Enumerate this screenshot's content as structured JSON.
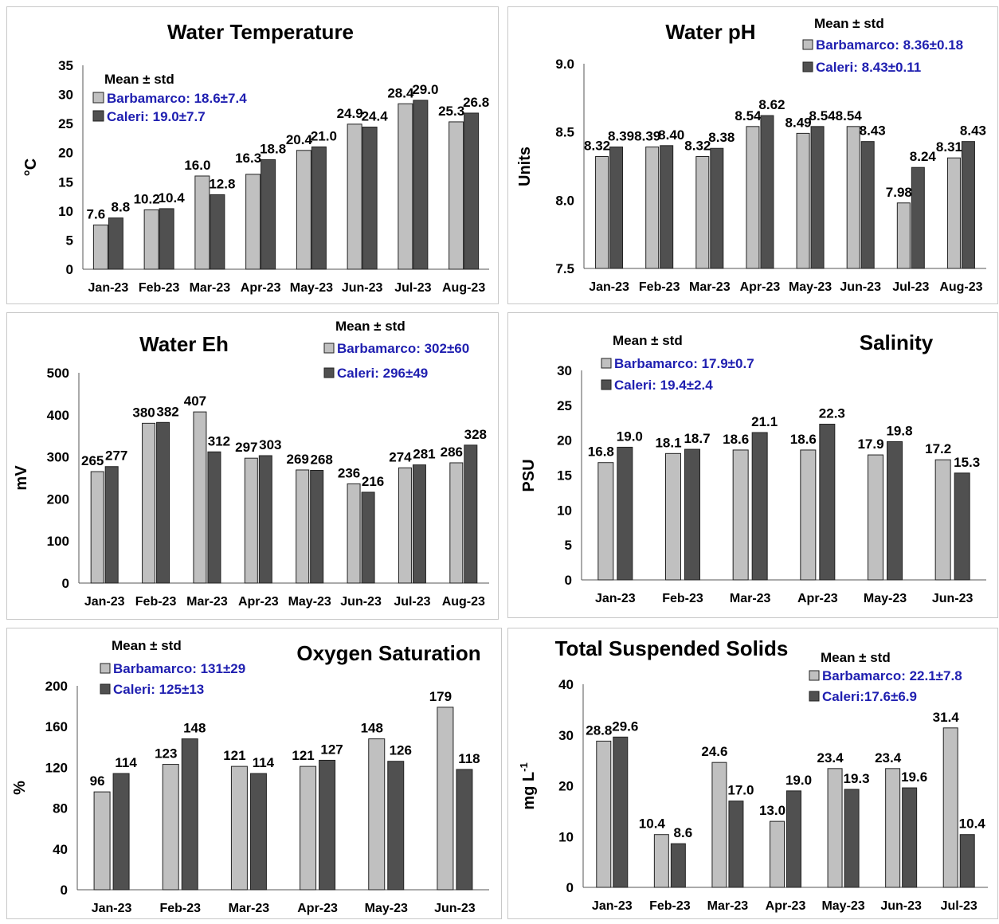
{
  "colors": {
    "s1": "#c0c0c0",
    "s2": "#505050",
    "legend_text": "#1f1fb0",
    "text": "#000000"
  },
  "legend_heading": "Mean ± std",
  "chart_data": [
    {
      "type": "bar",
      "title": "Water Temperature",
      "ylabel": "°C",
      "ylim": [
        0,
        35
      ],
      "yticks": [
        "0",
        "5",
        "10",
        "15",
        "20",
        "25",
        "30",
        "35"
      ],
      "categories": [
        "Jan-23",
        "Feb-23",
        "Mar-23",
        "Apr-23",
        "May-23",
        "Jun-23",
        "Jul-23",
        "Aug-23"
      ],
      "series": [
        {
          "name": "Barbamarco: 18.6±7.4",
          "values": [
            7.6,
            10.2,
            16.0,
            16.3,
            20.4,
            24.9,
            28.4,
            25.3
          ],
          "labels": [
            "7.6",
            "10.2",
            "16.0",
            "16.3",
            "20.4",
            "24.9",
            "28.4",
            "25.3"
          ]
        },
        {
          "name": "Caleri: 19.0±7.7",
          "values": [
            8.8,
            10.4,
            12.8,
            18.8,
            21.0,
            24.4,
            29.0,
            26.8
          ],
          "labels": [
            "8.8",
            "10.4",
            "12.8",
            "18.8",
            "21.0",
            "24.4",
            "29.0",
            "26.8"
          ]
        }
      ]
    },
    {
      "type": "bar",
      "title": "Water pH",
      "ylabel": "Units",
      "ylim": [
        7.5,
        9.0
      ],
      "yticks": [
        "7.5",
        "8.0",
        "8.5",
        "9.0"
      ],
      "categories": [
        "Jan-23",
        "Feb-23",
        "Mar-23",
        "Apr-23",
        "May-23",
        "Jun-23",
        "Jul-23",
        "Aug-23"
      ],
      "series": [
        {
          "name": "Barbamarco: 8.36±0.18",
          "values": [
            8.32,
            8.39,
            8.32,
            8.54,
            8.49,
            8.54,
            7.98,
            8.31
          ],
          "labels": [
            "8.32",
            "8.39",
            "8.32",
            "8.54",
            "8.49",
            "8.54",
            "7.98",
            "8.31"
          ]
        },
        {
          "name": "Caleri: 8.43±0.11",
          "values": [
            8.39,
            8.4,
            8.38,
            8.62,
            8.54,
            8.43,
            8.24,
            8.43
          ],
          "labels": [
            "8.39",
            "8.40",
            "8.38",
            "8.62",
            "8.54",
            "8.43",
            "8.24",
            "8.43"
          ]
        }
      ]
    },
    {
      "type": "bar",
      "title": "Water Eh",
      "ylabel": "mV",
      "ylim": [
        0,
        500
      ],
      "yticks": [
        "0",
        "100",
        "200",
        "300",
        "400",
        "500"
      ],
      "categories": [
        "Jan-23",
        "Feb-23",
        "Mar-23",
        "Apr-23",
        "May-23",
        "Jun-23",
        "Jul-23",
        "Aug-23"
      ],
      "series": [
        {
          "name": "Barbamarco: 302±60",
          "values": [
            265,
            380,
            407,
            297,
            269,
            236,
            274,
            286
          ],
          "labels": [
            "265",
            "380",
            "407",
            "297",
            "269",
            "236",
            "274",
            "286"
          ]
        },
        {
          "name": "Caleri: 296±49",
          "values": [
            277,
            382,
            312,
            303,
            268,
            216,
            281,
            328
          ],
          "labels": [
            "277",
            "382",
            "312",
            "303",
            "268",
            "216",
            "281",
            "328"
          ]
        }
      ]
    },
    {
      "type": "bar",
      "title": "Salinity",
      "ylabel": "PSU",
      "ylim": [
        0,
        30
      ],
      "yticks": [
        "0",
        "5",
        "10",
        "15",
        "20",
        "25",
        "30"
      ],
      "categories": [
        "Jan-23",
        "Feb-23",
        "Mar-23",
        "Apr-23",
        "May-23",
        "Jun-23"
      ],
      "series": [
        {
          "name": "Barbamarco: 17.9±0.7",
          "values": [
            16.8,
            18.1,
            18.6,
            18.6,
            17.9,
            17.2
          ],
          "labels": [
            "16.8",
            "18.1",
            "18.6",
            "18.6",
            "17.9",
            "17.2"
          ]
        },
        {
          "name": "Caleri: 19.4±2.4",
          "values": [
            19.0,
            18.7,
            21.1,
            22.3,
            19.8,
            15.3
          ],
          "labels": [
            "19.0",
            "18.7",
            "21.1",
            "22.3",
            "19.8",
            "15.3"
          ]
        }
      ]
    },
    {
      "type": "bar",
      "title": "Oxygen Saturation",
      "ylabel": "%",
      "ylim": [
        0,
        200
      ],
      "yticks": [
        "0",
        "40",
        "80",
        "120",
        "160",
        "200"
      ],
      "categories": [
        "Jan-23",
        "Feb-23",
        "Mar-23",
        "Apr-23",
        "May-23",
        "Jun-23"
      ],
      "series": [
        {
          "name": "Barbamarco: 131±29",
          "values": [
            96,
            123,
            121,
            121,
            148,
            179
          ],
          "labels": [
            "96",
            "123",
            "121",
            "121",
            "148",
            "179"
          ]
        },
        {
          "name": "Caleri: 125±13",
          "values": [
            114,
            148,
            114,
            127,
            126,
            118
          ],
          "labels": [
            "114",
            "148",
            "114",
            "127",
            "126",
            "118"
          ]
        }
      ]
    },
    {
      "type": "bar",
      "title": "Total Suspended Solids",
      "ylabel": "mg L",
      "ylabel_sup": "-1",
      "ylim": [
        0,
        40
      ],
      "yticks": [
        "0",
        "10",
        "20",
        "30",
        "40"
      ],
      "categories": [
        "Jan-23",
        "Feb-23",
        "Mar-23",
        "Apr-23",
        "May-23",
        "Jun-23",
        "Jul-23"
      ],
      "series": [
        {
          "name": "Barbamarco: 22.1±7.8",
          "values": [
            28.8,
            10.4,
            24.6,
            13.0,
            23.4,
            23.4,
            31.4
          ],
          "labels": [
            "28.8",
            "10.4",
            "24.6",
            "13.0",
            "23.4",
            "23.4",
            "31.4"
          ]
        },
        {
          "name": "Caleri:17.6±6.9",
          "values": [
            29.6,
            8.6,
            17.0,
            19.0,
            19.3,
            19.6,
            10.4
          ],
          "labels": [
            "29.6",
            "8.6",
            "17.0",
            "19.0",
            "19.3",
            "19.6",
            "10.4"
          ]
        }
      ]
    }
  ]
}
